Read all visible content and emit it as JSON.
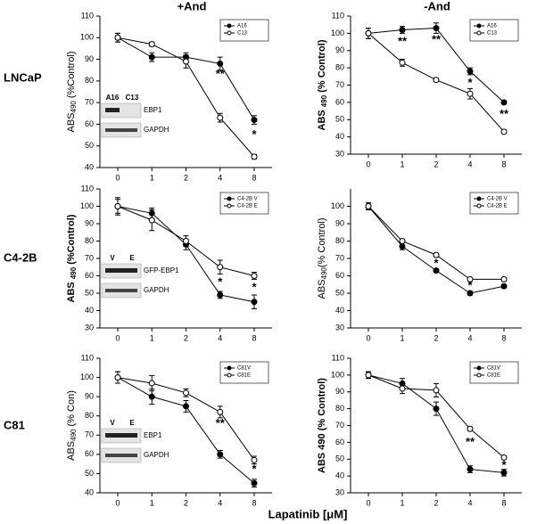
{
  "column_titles": [
    "+And",
    "-And"
  ],
  "row_labels": [
    "LNCaP",
    "C4-2B",
    "C81"
  ],
  "xlabel": "Lapatinib [μM]",
  "chart_data": [
    {
      "type": "line",
      "ylabel": [
        "ABS",
        "490",
        " (%Control)"
      ],
      "ylabel_bold": false,
      "categories": [
        "0",
        "1",
        "2",
        "4",
        "8"
      ],
      "ylim": [
        40,
        110
      ],
      "yticks": [
        40,
        50,
        60,
        70,
        80,
        90,
        100,
        110
      ],
      "series": [
        {
          "name": "A16",
          "color": "#000",
          "marker": "filled",
          "values": [
            100,
            91,
            91,
            88,
            62
          ],
          "errors": [
            2,
            2,
            2,
            3,
            2
          ]
        },
        {
          "name": "C13",
          "color": "#000",
          "marker": "open",
          "values": [
            100,
            97,
            89,
            63,
            45
          ],
          "errors": [
            2,
            1,
            3,
            2,
            1
          ]
        }
      ],
      "annotations": [
        {
          "text": "**",
          "category": 3,
          "value": 83
        },
        {
          "text": "*",
          "category": 4,
          "value": 55
        }
      ],
      "inset": {
        "lanes": [
          "A16",
          "C13"
        ],
        "bands": [
          "EBP1",
          "GAPDH"
        ]
      }
    },
    {
      "type": "line",
      "ylabel": [
        "ABS ",
        "490",
        " (% Control)"
      ],
      "ylabel_bold": true,
      "categories": [
        "0",
        "1",
        "2",
        "4",
        "8"
      ],
      "ylim": [
        30,
        110
      ],
      "yticks": [
        30,
        40,
        50,
        60,
        70,
        80,
        90,
        100,
        110
      ],
      "series": [
        {
          "name": "A16",
          "color": "#000",
          "marker": "filled",
          "values": [
            100,
            102,
            103,
            78,
            60
          ],
          "errors": [
            3,
            2,
            3,
            2,
            1
          ]
        },
        {
          "name": "C13",
          "color": "#000",
          "marker": "open",
          "values": [
            100,
            83,
            73,
            65,
            43
          ],
          "errors": [
            3,
            2,
            1,
            3,
            1
          ]
        }
      ],
      "annotations": [
        {
          "text": "**",
          "category": 1,
          "value": 95
        },
        {
          "text": "**",
          "category": 2,
          "value": 96
        },
        {
          "text": "*",
          "category": 3,
          "value": 71
        },
        {
          "text": "**",
          "category": 4,
          "value": 53
        }
      ],
      "inset": null
    },
    {
      "type": "line",
      "ylabel": [
        "ABS ",
        "490",
        " (%Control)"
      ],
      "ylabel_bold": true,
      "categories": [
        "0",
        "1",
        "2",
        "4",
        "8"
      ],
      "ylim": [
        30,
        110
      ],
      "yticks": [
        30,
        40,
        50,
        60,
        70,
        80,
        90,
        100,
        110
      ],
      "series": [
        {
          "name": "C4-2B V",
          "color": "#000",
          "marker": "filled",
          "values": [
            100,
            96,
            78,
            49,
            45
          ],
          "errors": [
            4,
            3,
            3,
            2,
            4
          ]
        },
        {
          "name": "C4-2B E",
          "color": "#000",
          "marker": "open",
          "values": [
            100,
            92,
            80,
            65,
            60
          ],
          "errors": [
            5,
            6,
            3,
            4,
            2
          ]
        }
      ],
      "annotations": [
        {
          "text": "*",
          "category": 3,
          "value": 56
        },
        {
          "text": "*",
          "category": 4,
          "value": 53
        }
      ],
      "inset": {
        "lanes": [
          "V",
          "E"
        ],
        "bands": [
          "GFP-EBP1",
          "GAPDH"
        ]
      }
    },
    {
      "type": "line",
      "ylabel": [
        "ABS",
        "490",
        "(% Control)"
      ],
      "ylabel_bold": false,
      "categories": [
        "0",
        "1",
        "2",
        "4",
        "8"
      ],
      "ylim": [
        30,
        110
      ],
      "yticks": [
        30,
        40,
        50,
        60,
        70,
        80,
        90,
        100
      ],
      "series": [
        {
          "name": "C4-2B V",
          "color": "#000",
          "marker": "filled",
          "values": [
            100,
            77,
            63,
            50,
            54
          ],
          "errors": [
            2,
            2,
            1,
            1,
            1
          ]
        },
        {
          "name": "C4-2B E",
          "color": "#000",
          "marker": "open",
          "values": [
            100,
            80,
            72,
            58,
            58
          ],
          "errors": [
            2,
            1,
            1,
            1,
            1
          ]
        }
      ],
      "annotations": [
        {
          "text": "*",
          "category": 2,
          "value": 67
        },
        {
          "text": "*",
          "category": 3,
          "value": 54
        }
      ],
      "inset": null
    },
    {
      "type": "line",
      "ylabel": [
        "ABS",
        "490",
        " (% Con)"
      ],
      "ylabel_bold": false,
      "categories": [
        "0",
        "1",
        "2",
        "4",
        "8"
      ],
      "ylim": [
        40,
        110
      ],
      "yticks": [
        40,
        50,
        60,
        70,
        80,
        90,
        100,
        110
      ],
      "series": [
        {
          "name": "C81V",
          "color": "#000",
          "marker": "filled",
          "values": [
            100,
            90,
            85,
            60,
            45
          ],
          "errors": [
            3,
            4,
            3,
            2,
            2
          ]
        },
        {
          "name": "C81E",
          "color": "#000",
          "marker": "open",
          "values": [
            100,
            97,
            92,
            82,
            57
          ],
          "errors": [
            3,
            4,
            2,
            3,
            2
          ]
        }
      ],
      "annotations": [
        {
          "text": "**",
          "category": 3,
          "value": 76
        },
        {
          "text": "*",
          "category": 4,
          "value": 52
        }
      ],
      "inset": {
        "lanes": [
          "V",
          "E"
        ],
        "bands": [
          "EBP1",
          "GAPDH"
        ]
      }
    },
    {
      "type": "line",
      "ylabel": [
        "ABS 490 (% Control)"
      ],
      "ylabel_bold": true,
      "categories": [
        "0",
        "1",
        "2",
        "4",
        "8"
      ],
      "ylim": [
        30,
        110
      ],
      "yticks": [
        30,
        40,
        50,
        60,
        70,
        80,
        90,
        100,
        110
      ],
      "series": [
        {
          "name": "C81V",
          "color": "#000",
          "marker": "filled",
          "values": [
            100,
            95,
            80,
            44,
            42
          ],
          "errors": [
            2,
            3,
            4,
            2,
            2
          ]
        },
        {
          "name": "C81E",
          "color": "#000",
          "marker": "open",
          "values": [
            100,
            92,
            91,
            68,
            51
          ],
          "errors": [
            2,
            3,
            4,
            1,
            1
          ]
        }
      ],
      "annotations": [
        {
          "text": "**",
          "category": 3,
          "value": 60
        },
        {
          "text": "*",
          "category": 4,
          "value": 46
        }
      ],
      "inset": null
    }
  ]
}
